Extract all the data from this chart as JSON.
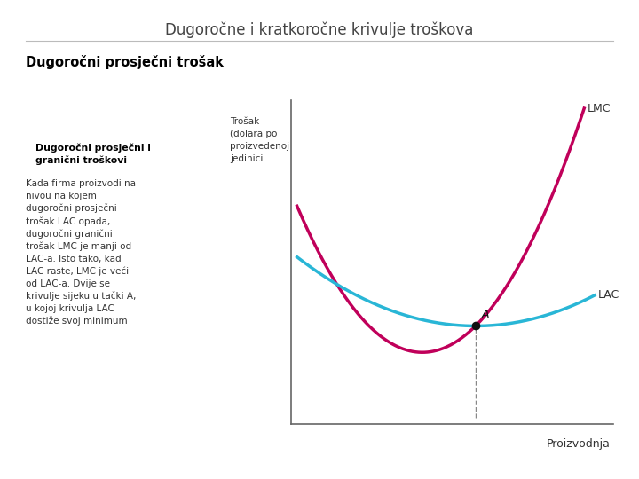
{
  "title": "Dugoročne i kratkoročne krivulje troškova",
  "subtitle": "Dugoročni prosječni trošak",
  "box_title": "Dugoročni prosječni i\ngranični troškovi",
  "box_text_lines": [
    "Kada firma proizvodi na",
    "nivou na kojem",
    "dugoročni prosječni",
    "trošak LAC opada,",
    "dugoročni granični",
    "trošak LMC je manji od",
    "LAC-a. Isto tako, kad",
    "LAC raste, LMC je veći",
    "od LAC-a. Dvije se",
    "krivulje sijeku u tački A,",
    "u kojoj krivulja LAC",
    "dostiže svoj minimum"
  ],
  "ylabel_lines": [
    "Trošak",
    "(dolara po",
    "proizvedenoj",
    "jedinici"
  ],
  "xlabel": "Proizvodnja",
  "lmc_color": "#c0005a",
  "lac_color": "#29b6d6",
  "bg_color": "#ffffff",
  "title_color": "#444444",
  "box_bg": "#d8c8e0",
  "axis_color": "#666666",
  "point_color": "#111111",
  "dashed_color": "#888888",
  "label_color": "#333333"
}
